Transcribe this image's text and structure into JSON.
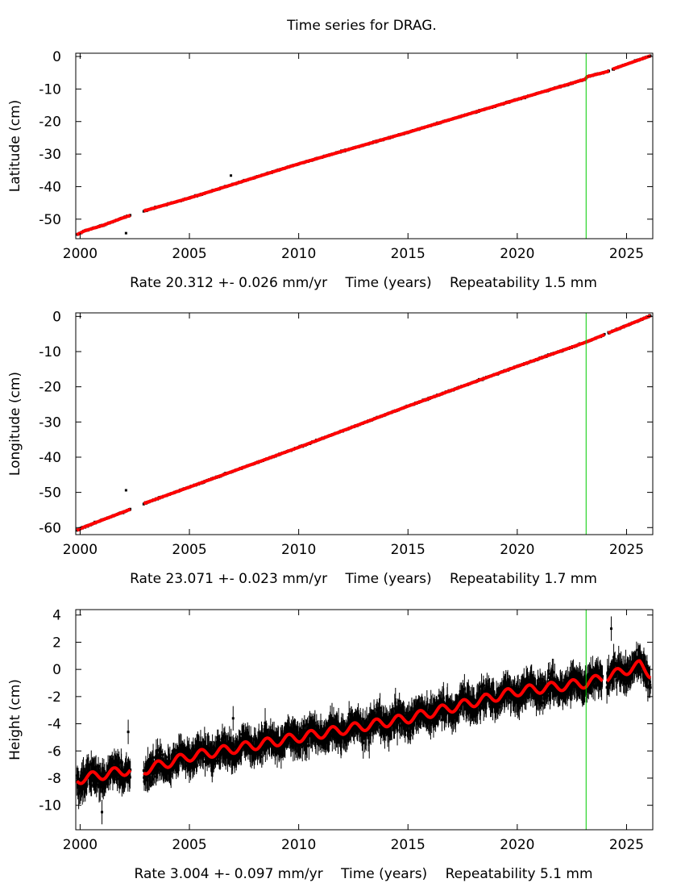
{
  "title": "Time series for DRAG.",
  "colors": {
    "data": "#000000",
    "model": "#ff0000",
    "marker_line": "#00cc00",
    "frame": "#000000"
  },
  "chart_data": [
    {
      "type": "scatter",
      "component": "Latitude",
      "ylabel": "Latitude (cm)",
      "xlabel_parts": [
        "Rate 20.312 +- 0.026 mm/yr",
        "Time (years)",
        "Repeatability 1.5 mm"
      ],
      "xlim": [
        1999.8,
        2026.2
      ],
      "ylim": [
        -56,
        1
      ],
      "xticks": [
        2000,
        2005,
        2010,
        2015,
        2020,
        2025
      ],
      "yticks": [
        0,
        -10,
        -20,
        -30,
        -40,
        -50
      ],
      "rate_mm_per_yr": 20.312,
      "rate_err_mm_per_yr": 0.026,
      "repeatability_mm": 1.5,
      "vertical_marker_year": 2023.15,
      "gaps": [
        [
          2002.3,
          2002.9
        ],
        [
          2024.2,
          2024.35
        ]
      ],
      "outliers": [
        [
          2002.1,
          -54.3
        ],
        [
          2006.9,
          -36.6
        ],
        [
          1999.85,
          -54.6
        ]
      ],
      "seasonal_amplitude_cm": 0.0,
      "offset_at_marker_cm": 0.8,
      "series": [
        {
          "name": "observations",
          "x": [
            1999.85,
            2000.2,
            2001,
            2002,
            2002.9,
            2005,
            2010,
            2015,
            2020,
            2023.1,
            2023.2,
            2024.1,
            2024.4,
            2026.1
          ],
          "y": [
            -54.8,
            -53.6,
            -52.0,
            -49.5,
            -47.5,
            -43.5,
            -33.0,
            -23.3,
            -13.2,
            -7.0,
            -6.2,
            -4.7,
            -3.8,
            0.2
          ]
        },
        {
          "name": "model",
          "x": [
            1999.85,
            2026.1
          ],
          "y": [
            -54.8,
            0.2
          ]
        }
      ]
    },
    {
      "type": "scatter",
      "component": "Longitude",
      "ylabel": "Longitude (cm)",
      "xlabel_parts": [
        "Rate 23.071 +- 0.023 mm/yr",
        "Time (years)",
        "Repeatability 1.7 mm"
      ],
      "xlim": [
        1999.8,
        2026.2
      ],
      "ylim": [
        -62,
        1
      ],
      "xticks": [
        2000,
        2005,
        2010,
        2015,
        2020,
        2025
      ],
      "yticks": [
        0,
        -10,
        -20,
        -30,
        -40,
        -50,
        -60
      ],
      "rate_mm_per_yr": 23.071,
      "rate_err_mm_per_yr": 0.023,
      "repeatability_mm": 1.7,
      "vertical_marker_year": 2023.15,
      "gaps": [
        [
          2002.3,
          2002.9
        ],
        [
          2024.0,
          2024.15
        ]
      ],
      "outliers": [
        [
          2002.1,
          -49.4
        ],
        [
          1999.85,
          -60.8
        ]
      ],
      "seasonal_amplitude_cm": 0.0,
      "offset_at_marker_cm": 0.0,
      "series": [
        {
          "name": "observations",
          "x": [
            1999.85,
            2000.2,
            2002.3,
            2002.9,
            2005,
            2010,
            2015,
            2020,
            2023.15,
            2026.1
          ],
          "y": [
            -60.8,
            -59.8,
            -54.8,
            -53.2,
            -48.5,
            -37.2,
            -25.5,
            -14.2,
            -7.3,
            0.2
          ]
        },
        {
          "name": "model",
          "x": [
            1999.85,
            2026.1
          ],
          "y": [
            -60.8,
            0.2
          ]
        }
      ]
    },
    {
      "type": "scatter",
      "component": "Height",
      "ylabel": "Height (cm)",
      "xlabel_parts": [
        "Rate 3.004 +- 0.097 mm/yr",
        "Time (years)",
        "Repeatability 5.1 mm"
      ],
      "xlim": [
        1999.8,
        2026.2
      ],
      "ylim": [
        -11.8,
        4.4
      ],
      "xticks": [
        2000,
        2005,
        2010,
        2015,
        2020,
        2025
      ],
      "yticks": [
        4,
        2,
        0,
        -2,
        -4,
        -6,
        -8,
        -10
      ],
      "rate_mm_per_yr": 3.004,
      "rate_err_mm_per_yr": 0.097,
      "repeatability_mm": 5.1,
      "vertical_marker_year": 2023.15,
      "gaps": [
        [
          2002.3,
          2002.9
        ],
        [
          2023.9,
          2024.1
        ]
      ],
      "outliers": [
        [
          2001.0,
          -10.5
        ],
        [
          2002.2,
          -4.6
        ],
        [
          2007.0,
          -3.6
        ],
        [
          2024.3,
          3.0
        ]
      ],
      "seasonal_amplitude_cm": 0.35,
      "offset_at_marker_cm": 0.0,
      "series": [
        {
          "name": "observations",
          "x": [
            1999.85,
            2002.2,
            2002.9,
            2005,
            2010,
            2015,
            2020,
            2023.15,
            2024.2,
            2025.6,
            2026.1
          ],
          "y": [
            -8.1,
            -7.4,
            -7.4,
            -6.4,
            -5.0,
            -3.6,
            -1.6,
            -1.0,
            -0.5,
            0.3,
            -0.3
          ]
        },
        {
          "name": "model",
          "x": [
            1999.85,
            2026.1
          ],
          "y": [
            -8.1,
            -0.3
          ]
        }
      ]
    }
  ]
}
